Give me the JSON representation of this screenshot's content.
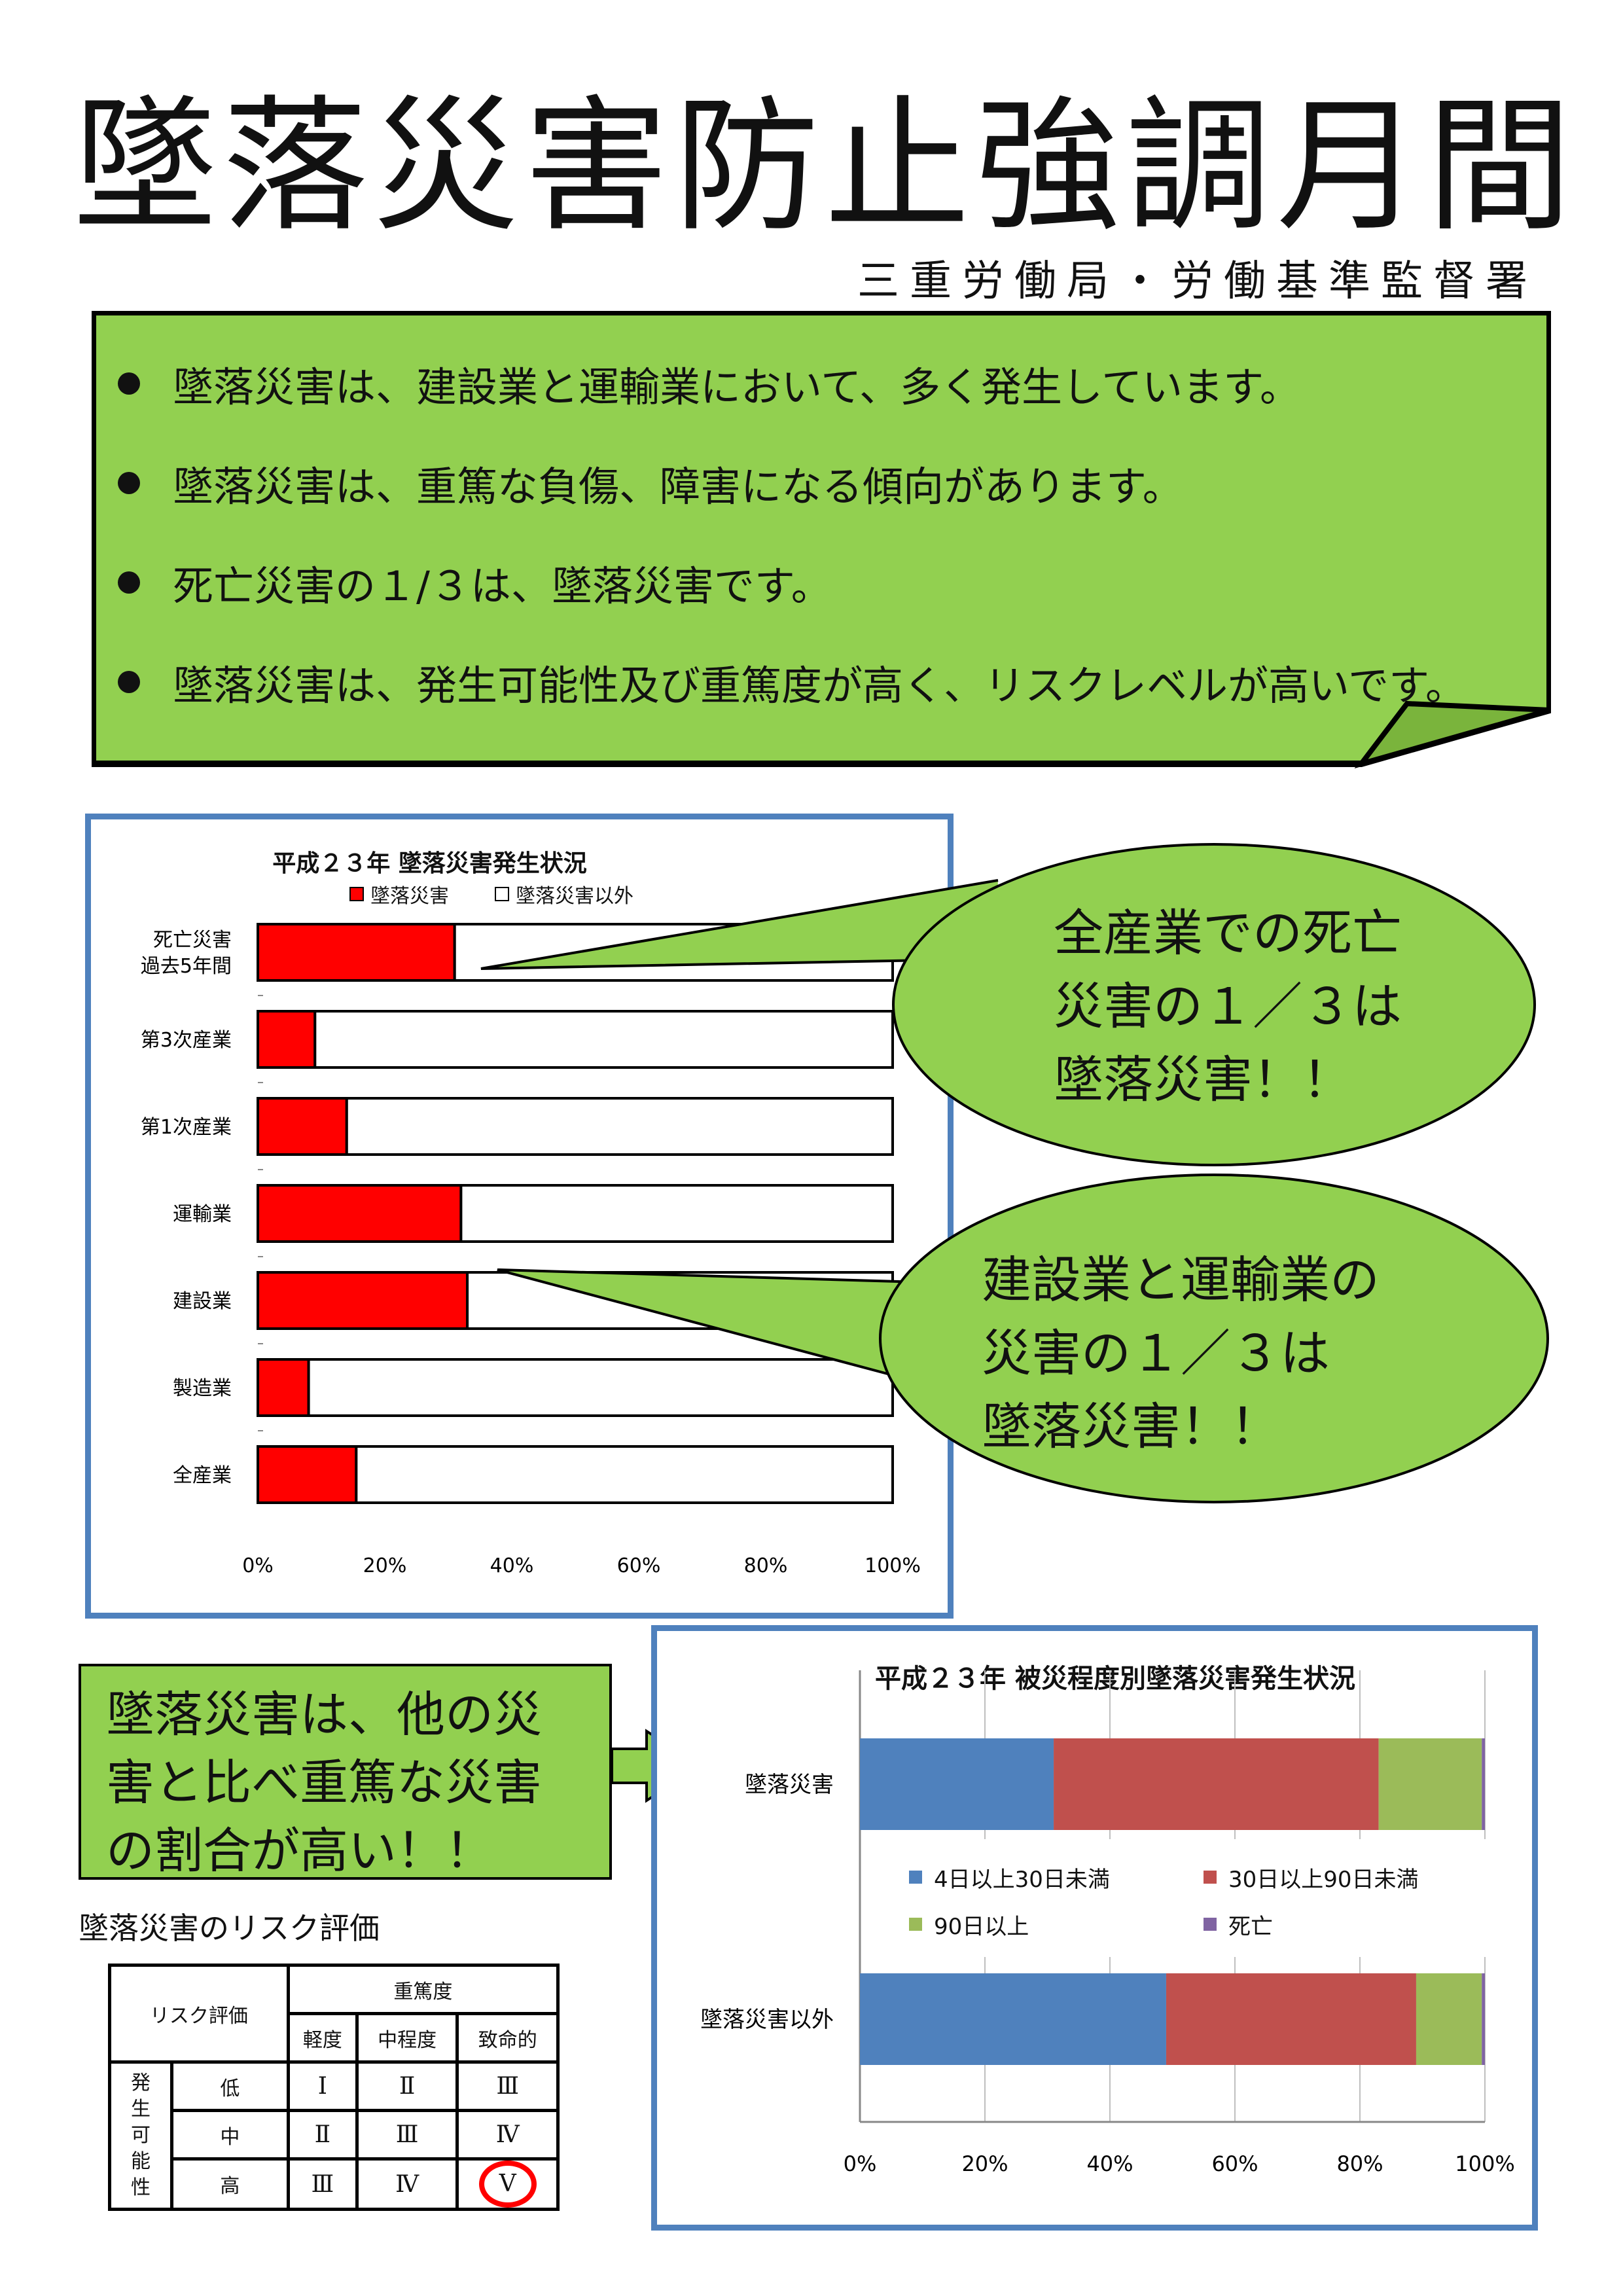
{
  "title": "墜落災害防止強調月間",
  "subtitle": "三重労働局・労働基準監督署",
  "colors": {
    "green": "#92d050",
    "red": "#ff0000",
    "frame": "#4f81bd",
    "blue": "#4f81bd",
    "brick": "#c0504d",
    "olive": "#9bbb59",
    "purple": "#8064a2"
  },
  "notes": [
    "墜落災害は、建設業と運輸業において、多く発生しています。",
    "墜落災害は、重篤な負傷、障害になる傾向があります。",
    "死亡災害の１/３は、墜落災害です。",
    "墜落災害は、発生可能性及び重篤度が高く、リスクレベルが高いです。"
  ],
  "callout1": [
    "全産業での死亡",
    "災害の１／３は",
    "墜落災害！！"
  ],
  "callout2": [
    "建設業と運輸業の",
    "災害の１／３は",
    "墜落災害！！"
  ],
  "green_box": [
    "墜落災害は、他の災",
    "害と比べ重篤な災害",
    "の割合が高い！！"
  ],
  "risk": {
    "caption": "墜落災害のリスク評価",
    "header": "リスク評価",
    "severity": "重篤度",
    "cols": [
      "軽度",
      "中程度",
      "致命的"
    ],
    "likelihood": [
      "発",
      "生",
      "可",
      "能",
      "性"
    ],
    "rows": [
      {
        "label": "低",
        "cells": [
          "Ⅰ",
          "Ⅱ",
          "Ⅲ"
        ]
      },
      {
        "label": "中",
        "cells": [
          "Ⅱ",
          "Ⅲ",
          "Ⅳ"
        ]
      },
      {
        "label": "高",
        "cells": [
          "Ⅲ",
          "Ⅳ",
          "Ⅴ"
        ]
      }
    ]
  },
  "chart_data": [
    {
      "type": "bar",
      "orientation": "horizontal",
      "stacked": true,
      "title": "平成２３年 墜落災害発生状況",
      "categories": [
        "死亡災害\n過去5年間",
        "第3次産業",
        "第1次産業",
        "運輸業",
        "建設業",
        "製造業",
        "全産業"
      ],
      "series": [
        {
          "name": "墜落災害",
          "values": [
            31,
            9,
            14,
            32,
            33,
            8,
            15.5
          ]
        },
        {
          "name": "墜落災害以外",
          "values": [
            69,
            91,
            86,
            68,
            67,
            92,
            84.5
          ]
        }
      ],
      "xticks": [
        "0%",
        "20%",
        "40%",
        "60%",
        "80%",
        "100%"
      ],
      "xlim": [
        0,
        100
      ],
      "legend": "top"
    },
    {
      "type": "bar",
      "orientation": "horizontal",
      "stacked": true,
      "title": "平成２３年 被災程度別墜落災害発生状況",
      "categories": [
        "墜落災害",
        "墜落災害以外"
      ],
      "series": [
        {
          "name": "4日以上30日未満",
          "values": [
            31,
            49
          ]
        },
        {
          "name": "30日以上90日未満",
          "values": [
            52,
            40
          ]
        },
        {
          "name": "90日以上",
          "values": [
            16.5,
            10.5
          ]
        },
        {
          "name": "死亡",
          "values": [
            0.5,
            0.5
          ]
        }
      ],
      "xticks": [
        "0%",
        "20%",
        "40%",
        "60%",
        "80%",
        "100%"
      ],
      "xlim": [
        0,
        100
      ],
      "legend": "middle"
    }
  ]
}
